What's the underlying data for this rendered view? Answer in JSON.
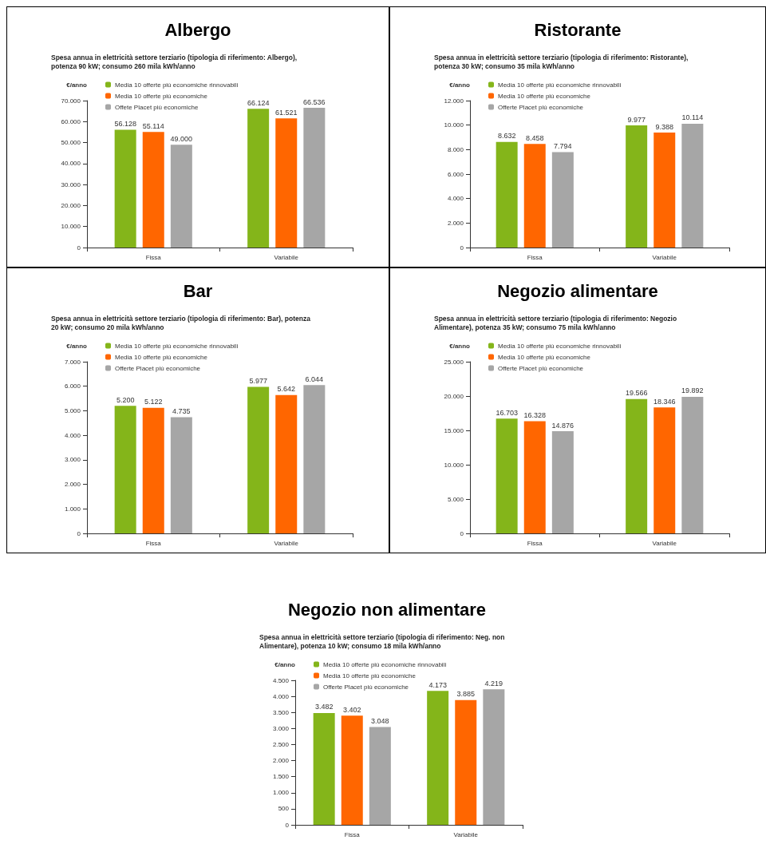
{
  "chart_data": [
    {
      "type": "bar",
      "title": "Albergo",
      "subtitle": "Spesa annua in elettricità settore terziario (tipologia di riferimento: Albergo), potenza 90 kW; consumo 260 mila kWh/anno",
      "ylabel": "€/anno",
      "categories": [
        "Fissa",
        "Variabile"
      ],
      "legend": "top left",
      "grid": false,
      "ylim": [
        0,
        70000
      ],
      "yticks": [
        {
          "value": 0,
          "label": "0"
        },
        {
          "value": 10000,
          "label": "10.000"
        },
        {
          "value": 20000,
          "label": "20.000"
        },
        {
          "value": 30000,
          "label": "30.000"
        },
        {
          "value": 40000,
          "label": "40.000"
        },
        {
          "value": 50000,
          "label": "50.000"
        },
        {
          "value": 60000,
          "label": "60.000"
        },
        {
          "value": 70000,
          "label": "70.000"
        }
      ],
      "series": [
        {
          "name": "Media 10 offerte più economiche rinnovabili",
          "color": "#84b51a",
          "values": [
            56128,
            66124
          ],
          "value_labels": [
            "56.128",
            "66.124"
          ]
        },
        {
          "name": "Media 10 offerte più economiche",
          "color": "#ff6600",
          "values": [
            55114,
            61521
          ],
          "value_labels": [
            "55.114",
            "61.521"
          ]
        },
        {
          "name": "Offete Placet più economiche",
          "color": "#a6a6a6",
          "values": [
            49000,
            66536
          ],
          "value_labels": [
            "49.000",
            "66.536"
          ]
        }
      ]
    },
    {
      "type": "bar",
      "title": "Ristorante",
      "subtitle": "Spesa annua in elettricità settore terziario (tipologia di riferimento: Ristorante), potenza 30 kW; consumo 35 mila kWh/anno",
      "ylabel": "€/anno",
      "categories": [
        "Fissa",
        "Variabile"
      ],
      "legend": "top left",
      "grid": false,
      "ylim": [
        0,
        12000
      ],
      "yticks": [
        {
          "value": 0,
          "label": "0"
        },
        {
          "value": 2000,
          "label": "2.000"
        },
        {
          "value": 4000,
          "label": "4.000"
        },
        {
          "value": 6000,
          "label": "6.000"
        },
        {
          "value": 8000,
          "label": "8.000"
        },
        {
          "value": 10000,
          "label": "10.000"
        },
        {
          "value": 12000,
          "label": "12.000"
        }
      ],
      "series": [
        {
          "name": "Media 10 offerte più economiche rinnovabili",
          "color": "#84b51a",
          "values": [
            8632,
            9977
          ],
          "value_labels": [
            "8.632",
            "9.977"
          ]
        },
        {
          "name": "Media 10 offerte più economiche",
          "color": "#ff6600",
          "values": [
            8458,
            9388
          ],
          "value_labels": [
            "8.458",
            "9.388"
          ]
        },
        {
          "name": "Offerte Placet più economiche",
          "color": "#a6a6a6",
          "values": [
            7794,
            10114
          ],
          "value_labels": [
            "7.794",
            "10.114"
          ]
        }
      ]
    },
    {
      "type": "bar",
      "title": "Bar",
      "subtitle": "Spesa annua in elettricità settore terziario (tipologia di riferimento: Bar), potenza 20 kW; consumo 20 mila kWh/anno",
      "ylabel": "€/anno",
      "categories": [
        "Fissa",
        "Variabile"
      ],
      "legend": "top left",
      "grid": false,
      "ylim": [
        0,
        7000
      ],
      "yticks": [
        {
          "value": 0,
          "label": "0"
        },
        {
          "value": 1000,
          "label": "1.000"
        },
        {
          "value": 2000,
          "label": "2.000"
        },
        {
          "value": 3000,
          "label": "3.000"
        },
        {
          "value": 4000,
          "label": "4.000"
        },
        {
          "value": 5000,
          "label": "5.000"
        },
        {
          "value": 6000,
          "label": "6.000"
        },
        {
          "value": 7000,
          "label": "7.000"
        }
      ],
      "series": [
        {
          "name": "Media 10 offerte più economiche rinnovabili",
          "color": "#84b51a",
          "values": [
            5200,
            5977
          ],
          "value_labels": [
            "5.200",
            "5.977"
          ]
        },
        {
          "name": "Media 10 offerte più economiche",
          "color": "#ff6600",
          "values": [
            5122,
            5642
          ],
          "value_labels": [
            "5.122",
            "5.642"
          ]
        },
        {
          "name": "Offerte Placet più economiche",
          "color": "#a6a6a6",
          "values": [
            4735,
            6044
          ],
          "value_labels": [
            "4.735",
            "6.044"
          ]
        }
      ]
    },
    {
      "type": "bar",
      "title": "Negozio alimentare",
      "subtitle": "Spesa annua in elettricità settore terziario (tipologia di riferimento: Negozio Alimentare), potenza 35 kW; consumo 75 mila kWh/anno",
      "ylabel": "€/anno",
      "categories": [
        "Fissa",
        "Variabile"
      ],
      "legend": "top left",
      "grid": false,
      "ylim": [
        0,
        25000
      ],
      "yticks": [
        {
          "value": 0,
          "label": "0"
        },
        {
          "value": 5000,
          "label": "5.000"
        },
        {
          "value": 10000,
          "label": "10.000"
        },
        {
          "value": 15000,
          "label": "15.000"
        },
        {
          "value": 20000,
          "label": "20.000"
        },
        {
          "value": 25000,
          "label": "25.000"
        }
      ],
      "series": [
        {
          "name": "Media 10 offerte più economiche rinnovabili",
          "color": "#84b51a",
          "values": [
            16703,
            19566
          ],
          "value_labels": [
            "16.703",
            "19.566"
          ]
        },
        {
          "name": "Media 10 offerte più economiche",
          "color": "#ff6600",
          "values": [
            16328,
            18346
          ],
          "value_labels": [
            "16.328",
            "18.346"
          ]
        },
        {
          "name": "Offerte Placet più economiche",
          "color": "#a6a6a6",
          "values": [
            14876,
            19892
          ],
          "value_labels": [
            "14.876",
            "19.892"
          ]
        }
      ]
    },
    {
      "type": "bar",
      "title": "Negozio non alimentare",
      "subtitle": "Spesa annua in elettricità settore terziario (tipologia di riferimento: Neg. non Alimentare), potenza 10 kW; consumo 18 mila kWh/anno",
      "ylabel": "€/anno",
      "categories": [
        "Fissa",
        "Variabile"
      ],
      "legend": "top left",
      "grid": false,
      "ylim": [
        0,
        4500
      ],
      "yticks": [
        {
          "value": 0,
          "label": "0"
        },
        {
          "value": 500,
          "label": "500"
        },
        {
          "value": 1000,
          "label": "1.000"
        },
        {
          "value": 1500,
          "label": "1.500"
        },
        {
          "value": 2000,
          "label": "2.000"
        },
        {
          "value": 2500,
          "label": "2.500"
        },
        {
          "value": 3000,
          "label": "3.000"
        },
        {
          "value": 3500,
          "label": "3.500"
        },
        {
          "value": 4000,
          "label": "4.000"
        },
        {
          "value": 4500,
          "label": "4.500"
        }
      ],
      "series": [
        {
          "name": "Media 10 offerte più economiche rinnovabili",
          "color": "#84b51a",
          "values": [
            3482,
            4173
          ],
          "value_labels": [
            "3.482",
            "4.173"
          ]
        },
        {
          "name": "Media 10 offerte più economiche",
          "color": "#ff6600",
          "values": [
            3402,
            3885
          ],
          "value_labels": [
            "3.402",
            "3.885"
          ]
        },
        {
          "name": "Offerte Placet più economiche",
          "color": "#a6a6a6",
          "values": [
            3048,
            4219
          ],
          "value_labels": [
            "3.048",
            "4.219"
          ]
        }
      ]
    }
  ]
}
